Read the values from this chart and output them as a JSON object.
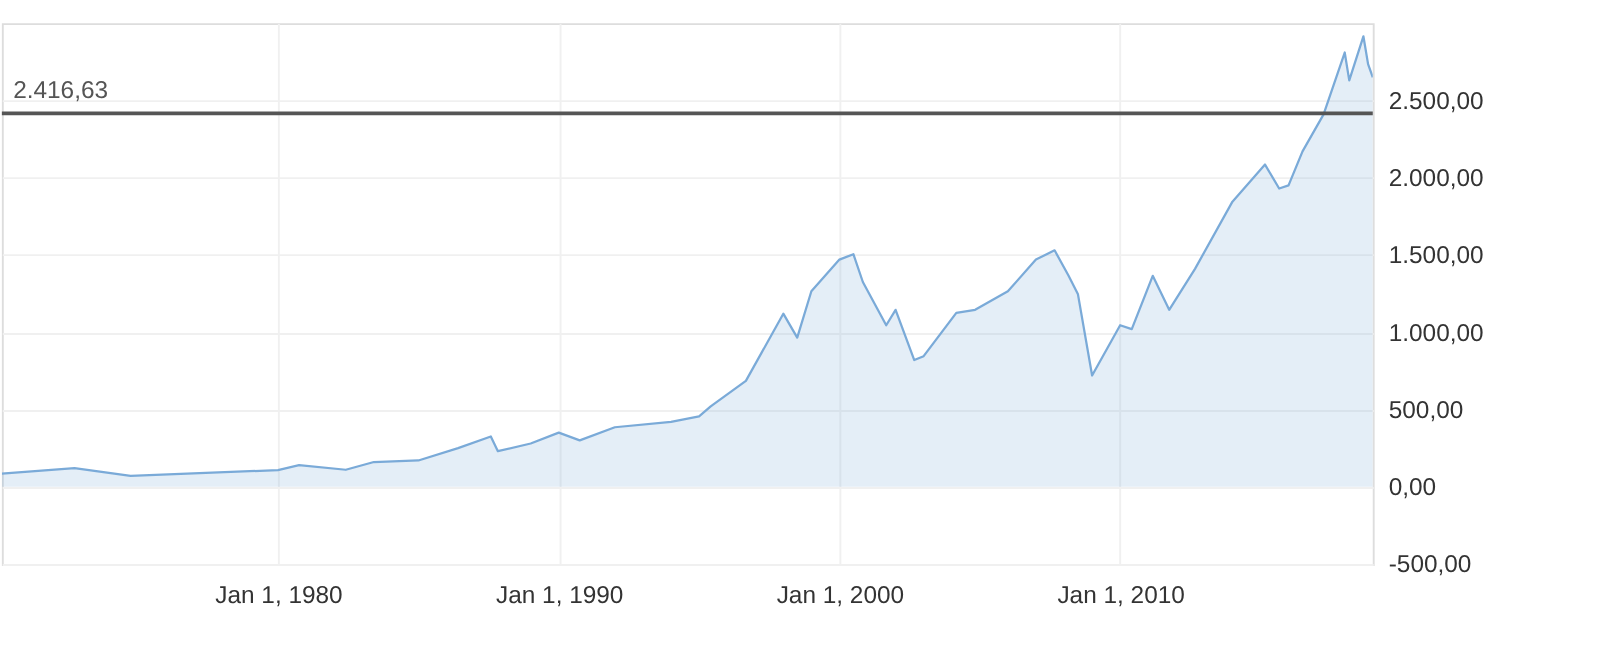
{
  "chart_data": {
    "type": "area",
    "x": [
      "1970-03",
      "1972-10",
      "1974-10",
      "1980-01",
      "1980-10",
      "1982-06",
      "1983-06",
      "1985-01",
      "1986-06",
      "1987-08",
      "1987-11",
      "1989-01",
      "1990-01",
      "1990-10",
      "1992-01",
      "1994-01",
      "1995-01",
      "1995-06",
      "1996-09",
      "1998-01",
      "1998-07",
      "1999-01",
      "2000-01",
      "2000-07",
      "2000-11",
      "2001-09",
      "2002-01",
      "2002-09",
      "2003-01",
      "2004-03",
      "2004-11",
      "2006-01",
      "2007-01",
      "2007-09",
      "2008-03",
      "2008-07",
      "2009-01",
      "2010-01",
      "2010-06",
      "2011-03",
      "2011-10",
      "2012-09",
      "2014-01",
      "2015-03",
      "2015-09",
      "2016-01",
      "2016-07",
      "2017-04",
      "2018-01",
      "2018-03",
      "2018-09",
      "2018-11",
      "2019-01"
    ],
    "series": [
      {
        "color": "#7aaad8",
        "values": [
          85,
          120,
          70,
          108,
          140,
          110,
          160,
          170,
          250,
          325,
          230,
          280,
          350,
          300,
          385,
          420,
          455,
          520,
          685,
          1120,
          965,
          1265,
          1470,
          1505,
          1325,
          1045,
          1145,
          820,
          845,
          1125,
          1145,
          1265,
          1470,
          1530,
          1365,
          1245,
          720,
          1045,
          1020,
          1365,
          1145,
          1410,
          1845,
          2085,
          1930,
          1950,
          2170,
          2410,
          2810,
          2630,
          2915,
          2735,
          2650
        ]
      }
    ],
    "xlim": [
      "1970-03",
      "2019-01"
    ],
    "xticks": [
      {
        "value": "1980-01-01",
        "label": "Jan 1, 1980"
      },
      {
        "value": "1990-01-01",
        "label": "Jan 1, 1990"
      },
      {
        "value": "2000-01-01",
        "label": "Jan 1, 2000"
      },
      {
        "value": "2010-01-01",
        "label": "Jan 1, 2010"
      }
    ],
    "ylim": [
      -500,
      3000
    ],
    "yticks": [
      {
        "value": -500,
        "label": "-500,00"
      },
      {
        "value": 0,
        "label": "0,00"
      },
      {
        "value": 500,
        "label": "500,00"
      },
      {
        "value": 1000,
        "label": "1.000,00"
      },
      {
        "value": 1500,
        "label": "1.500,00"
      },
      {
        "value": 2000,
        "label": "2.000,00"
      },
      {
        "value": 2500,
        "label": "2.500,00"
      }
    ],
    "ref_lines": [
      {
        "axis": "y",
        "value": 2416.63,
        "label": "2.416,63",
        "color": "#555555"
      }
    ],
    "grid": true
  }
}
